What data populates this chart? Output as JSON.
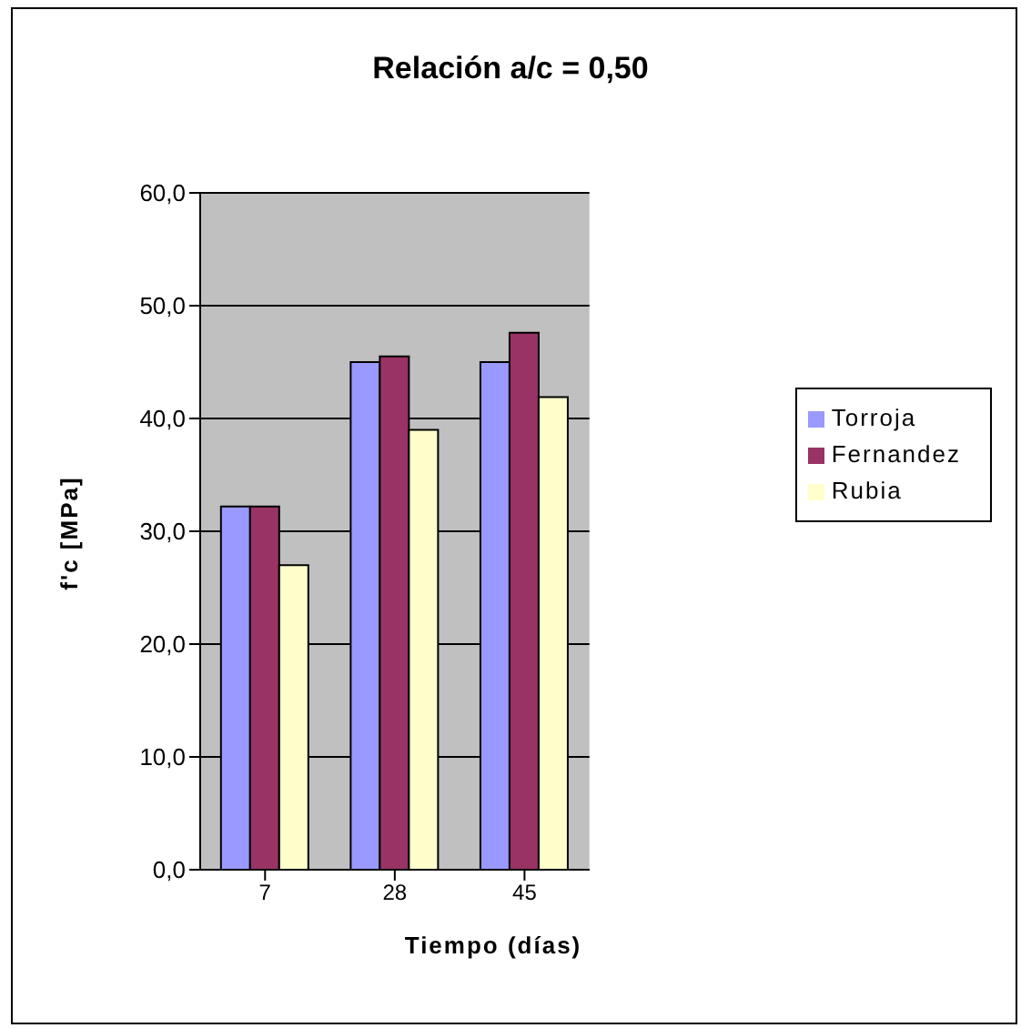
{
  "chart_data": {
    "type": "bar",
    "title": "Relación a/c = 0,50",
    "xlabel": "Tiempo (días)",
    "ylabel": "f'c [MPa]",
    "categories": [
      "7",
      "28",
      "45"
    ],
    "series": [
      {
        "name": "Torroja",
        "color": "#9999ff",
        "values": [
          32.2,
          45.0,
          45.0
        ]
      },
      {
        "name": "Fernandez",
        "color": "#993366",
        "values": [
          32.2,
          45.5,
          47.6
        ]
      },
      {
        "name": "Rubia",
        "color": "#ffffcc",
        "values": [
          27.0,
          39.0,
          41.9
        ]
      }
    ],
    "ylim": [
      0,
      60
    ],
    "yticks": [
      {
        "value": 0,
        "label": "0,0"
      },
      {
        "value": 10,
        "label": "10,0"
      },
      {
        "value": 20,
        "label": "20,0"
      },
      {
        "value": 30,
        "label": "30,0"
      },
      {
        "value": 40,
        "label": "40,0"
      },
      {
        "value": 50,
        "label": "50,0"
      },
      {
        "value": 60,
        "label": "60,0"
      }
    ],
    "grid": "y",
    "legend": "right"
  }
}
